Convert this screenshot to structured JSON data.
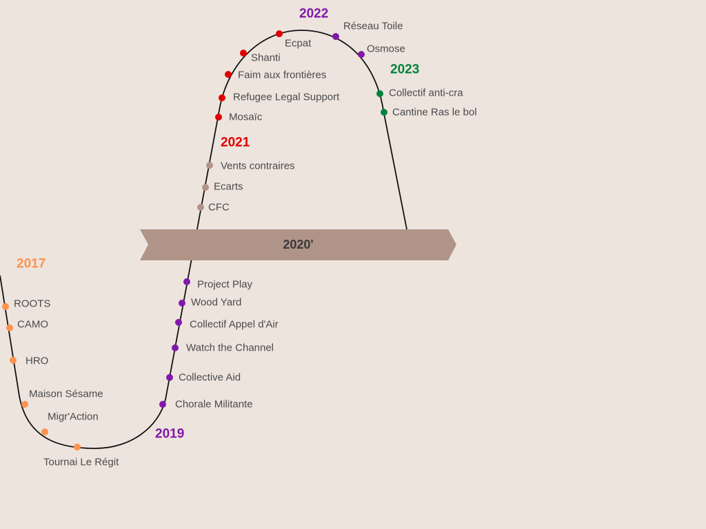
{
  "colors": {
    "background": "#ede4de",
    "2017": "#ff914d",
    "2019": "#8118a8",
    "2020s": "#b09488",
    "2021": "#e00000",
    "2022": "#8118a8",
    "2023": "#00843d",
    "line": "#111111",
    "banner": "#b09488"
  },
  "banner": {
    "label": "2020'"
  },
  "years": [
    {
      "label": "2017",
      "group": "2017"
    },
    {
      "label": "2019",
      "group": "2019"
    },
    {
      "label": "2021",
      "group": "2021"
    },
    {
      "label": "2022",
      "group": "2022"
    },
    {
      "label": "2023",
      "group": "2023"
    }
  ],
  "items": [
    {
      "label": "ROOTS",
      "group": "2017"
    },
    {
      "label": "CAMO",
      "group": "2017"
    },
    {
      "label": "HRO",
      "group": "2017"
    },
    {
      "label": "Maison Sésame",
      "group": "2017"
    },
    {
      "label": "Migr'Action",
      "group": "2017"
    },
    {
      "label": "Tournai Le Régit",
      "group": "2017"
    },
    {
      "label": "Project Play",
      "group": "2019"
    },
    {
      "label": "Wood Yard",
      "group": "2019"
    },
    {
      "label": "Collectif Appel d'Air",
      "group": "2019"
    },
    {
      "label": "Watch the Channel",
      "group": "2019"
    },
    {
      "label": "Collective Aid",
      "group": "2019"
    },
    {
      "label": "Chorale Militante",
      "group": "2019"
    },
    {
      "label": "CFC",
      "group": "2020s"
    },
    {
      "label": "Ecarts",
      "group": "2020s"
    },
    {
      "label": "Vents contraires",
      "group": "2020s"
    },
    {
      "label": "Mosaïc",
      "group": "2021"
    },
    {
      "label": "Refugee Legal Support",
      "group": "2021"
    },
    {
      "label": "Faim aux frontières",
      "group": "2021"
    },
    {
      "label": "Shanti",
      "group": "2021"
    },
    {
      "label": "Ecpat",
      "group": "2021"
    },
    {
      "label": "Réseau Toile",
      "group": "2022"
    },
    {
      "label": "Osmose",
      "group": "2022"
    },
    {
      "label": "Collectif anti-cra",
      "group": "2023"
    },
    {
      "label": "Cantine Ras le bol",
      "group": "2023"
    }
  ]
}
